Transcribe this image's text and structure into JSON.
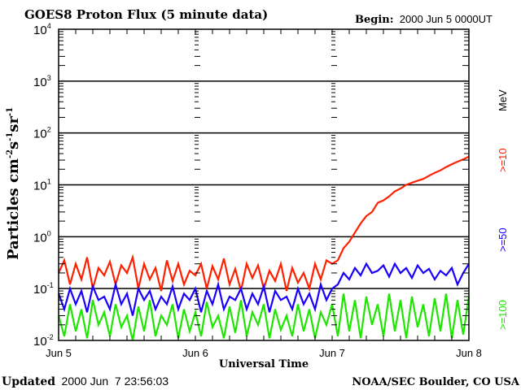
{
  "header": {
    "title": "GOES8 Proton Flux (5 minute data)",
    "begin_label": "Begin:",
    "begin_value": "2000 Jun 5 0000UT"
  },
  "footer": {
    "updated_label": "Updated",
    "updated_value": "2000 Jun  7 23:56:03",
    "credit": "NOAA/SEC Boulder, CO USA"
  },
  "chart_data": {
    "type": "line",
    "title": "GOES8 Proton Flux (5 minute data)",
    "xlabel": "Universal Time",
    "ylabel": {
      "base": "Particles cm",
      "sup1": "-2",
      "mid1": "s",
      "sup2": "-1",
      "mid2": "sr",
      "sup3": "-1"
    },
    "y_scale": "log",
    "ylim": [
      0.01,
      10000
    ],
    "y_ticks": [
      {
        "base": "10",
        "exp": "4",
        "value": 10000
      },
      {
        "base": "10",
        "exp": "3",
        "value": 1000
      },
      {
        "base": "10",
        "exp": "2",
        "value": 100
      },
      {
        "base": "10",
        "exp": "1",
        "value": 10
      },
      {
        "base": "10",
        "exp": "0",
        "value": 1
      },
      {
        "base": "10",
        "exp": "-1",
        "value": 0.1
      },
      {
        "base": "10",
        "exp": "-2",
        "value": 0.01
      }
    ],
    "x_range_hours": [
      0,
      72
    ],
    "x_ticks": [
      {
        "label": "Jun 5",
        "hour": 0
      },
      {
        "label": "Jun 6",
        "hour": 24
      },
      {
        "label": "Jun 7",
        "hour": 48
      },
      {
        "label": "Jun 8",
        "hour": 72
      }
    ],
    "grid": true,
    "unit_label": "MeV",
    "series": [
      {
        "name": ">=10",
        "color": "#ff2000",
        "values": [
          0.2,
          0.35,
          0.12,
          0.3,
          0.15,
          0.4,
          0.1,
          0.25,
          0.18,
          0.33,
          0.12,
          0.28,
          0.2,
          0.4,
          0.1,
          0.3,
          0.15,
          0.25,
          0.09,
          0.35,
          0.14,
          0.3,
          0.12,
          0.22,
          0.18,
          0.3,
          0.1,
          0.27,
          0.15,
          0.38,
          0.12,
          0.24,
          0.09,
          0.3,
          0.16,
          0.28,
          0.1,
          0.22,
          0.14,
          0.3,
          0.09,
          0.25,
          0.13,
          0.2,
          0.1,
          0.3,
          0.15,
          0.35,
          0.3,
          0.35,
          0.6,
          0.8,
          1.2,
          1.8,
          2.5,
          3,
          4.5,
          5,
          6,
          7.5,
          8.5,
          10,
          11,
          12,
          13,
          15,
          17,
          19,
          22,
          25,
          28,
          31,
          35
        ]
      },
      {
        "name": ">=50",
        "color": "#1a00ff",
        "values": [
          0.08,
          0.04,
          0.1,
          0.05,
          0.09,
          0.035,
          0.11,
          0.06,
          0.07,
          0.04,
          0.12,
          0.05,
          0.08,
          0.03,
          0.1,
          0.06,
          0.09,
          0.04,
          0.07,
          0.05,
          0.11,
          0.04,
          0.08,
          0.06,
          0.1,
          0.035,
          0.09,
          0.05,
          0.12,
          0.04,
          0.07,
          0.06,
          0.1,
          0.04,
          0.08,
          0.05,
          0.11,
          0.035,
          0.09,
          0.06,
          0.07,
          0.04,
          0.1,
          0.05,
          0.08,
          0.04,
          0.12,
          0.06,
          0.1,
          0.12,
          0.2,
          0.15,
          0.25,
          0.18,
          0.3,
          0.2,
          0.22,
          0.28,
          0.17,
          0.3,
          0.2,
          0.25,
          0.16,
          0.28,
          0.2,
          0.24,
          0.15,
          0.22,
          0.18,
          0.25,
          0.12,
          0.2,
          0.3
        ]
      },
      {
        "name": ">=100",
        "color": "#1ee600",
        "values": [
          0.03,
          0.012,
          0.05,
          0.015,
          0.04,
          0.011,
          0.06,
          0.02,
          0.035,
          0.012,
          0.05,
          0.018,
          0.03,
          0.01,
          0.045,
          0.015,
          0.06,
          0.012,
          0.03,
          0.02,
          0.05,
          0.011,
          0.04,
          0.015,
          0.035,
          0.012,
          0.055,
          0.018,
          0.03,
          0.011,
          0.045,
          0.014,
          0.06,
          0.012,
          0.035,
          0.02,
          0.05,
          0.011,
          0.04,
          0.016,
          0.03,
          0.012,
          0.05,
          0.015,
          0.04,
          0.011,
          0.035,
          0.02,
          0.05,
          0.012,
          0.08,
          0.015,
          0.06,
          0.011,
          0.07,
          0.02,
          0.05,
          0.012,
          0.08,
          0.015,
          0.06,
          0.011,
          0.07,
          0.018,
          0.05,
          0.012,
          0.065,
          0.015,
          0.08,
          0.011,
          0.06,
          0.013,
          0.07
        ]
      }
    ]
  }
}
